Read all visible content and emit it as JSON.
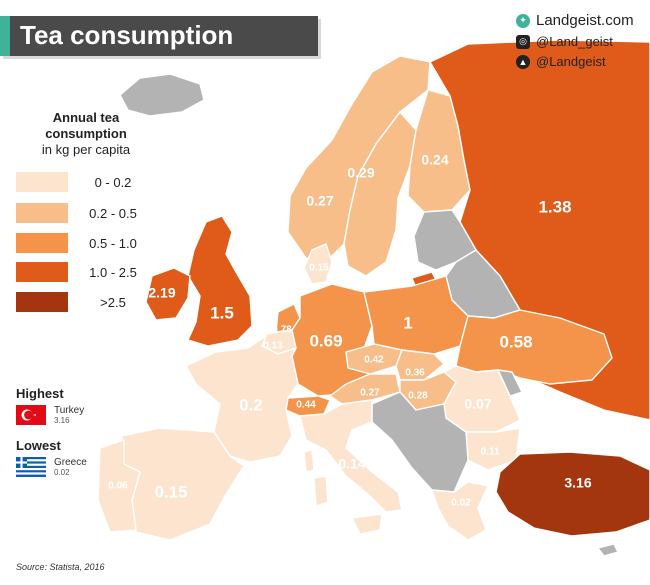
{
  "title": "Tea consumption",
  "brand": {
    "website": "Landgeist.com",
    "instagram": "@Land_geist",
    "twitter": "@Landgeist"
  },
  "legend": {
    "title_bold": "Annual tea consumption",
    "title_unit": "in kg per capita",
    "bins": [
      {
        "label": "0  - 0.2",
        "color": "#fce4cf"
      },
      {
        "label": "0.2 - 0.5",
        "color": "#f8be8a"
      },
      {
        "label": "0.5 - 1.0",
        "color": "#f3944a"
      },
      {
        "label": "1.0 - 2.5",
        "color": "#e05a1a"
      },
      {
        "label": ">2.5",
        "color": "#a3360e"
      }
    ]
  },
  "highest": {
    "heading": "Highest",
    "country": "Turkey",
    "value": "3.16"
  },
  "lowest": {
    "heading": "Lowest",
    "country": "Greece",
    "value": "0.02"
  },
  "source": "Source: Statista, 2016",
  "colors": {
    "no_data": "#b3b3b3"
  },
  "map_values": {
    "ireland": "2.19",
    "uk": "1.5",
    "netherlands": "0.78",
    "belgium": "0.13",
    "germany": "0.69",
    "poland": "1",
    "ukraine": "0.58",
    "russia": "1.38",
    "finland": "0.24",
    "sweden": "0.29",
    "norway": "0.27",
    "denmark": "0.15",
    "czechia": "0.42",
    "slovakia": "0.36",
    "austria": "0.27",
    "hungary": "0.28",
    "switzerland": "0.44",
    "romania": "0.07",
    "bulgaria": "0.11",
    "greece": "0.02",
    "italy": "0.14",
    "france": "0.2",
    "spain": "0.15",
    "portugal": "0.06",
    "turkey": "3.16"
  }
}
